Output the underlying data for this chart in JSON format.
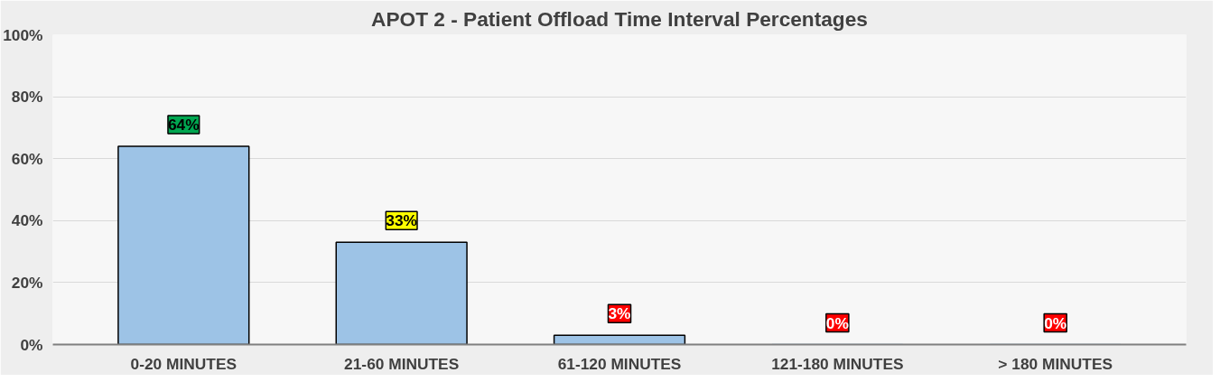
{
  "chart_data": {
    "type": "bar",
    "title": "APOT 2 - Patient Offload Time Interval Percentages",
    "categories": [
      "0-20 MINUTES",
      "21-60 MINUTES",
      "61-120 MINUTES",
      "121-180 MINUTES",
      "> 180 MINUTES"
    ],
    "values": [
      64,
      33,
      3,
      0,
      0
    ],
    "color": "#9dc3e6",
    "value_labels": [
      "64%",
      "33%",
      "3%",
      "0%",
      "0%"
    ],
    "ylim": [
      0,
      100
    ],
    "yticks": [
      {
        "value": 0,
        "label": "0%"
      },
      {
        "value": 20,
        "label": "20%"
      },
      {
        "value": 40,
        "label": "40%"
      },
      {
        "value": 60,
        "label": "60%"
      },
      {
        "value": 80,
        "label": "80%"
      },
      {
        "value": 100,
        "label": "100%"
      }
    ],
    "grid": "y"
  }
}
